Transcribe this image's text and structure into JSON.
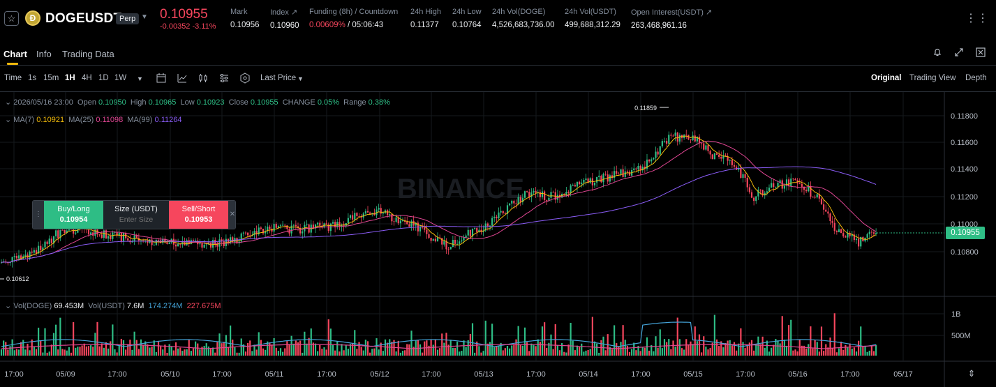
{
  "header": {
    "symbol": "DOGEUSDT",
    "contract_type": "Perp",
    "coin_glyph": "Ð",
    "last_price": "0.10955",
    "change": "-0.00352 -3.11%",
    "stats": [
      {
        "label": "Mark",
        "value": "0.10956"
      },
      {
        "label": "Index ↗",
        "value": "0.10960"
      },
      {
        "label": "Funding (8h) / Countdown",
        "value_rate": "0.00609%",
        "value_rest": " / 05:06:43"
      },
      {
        "label": "24h High",
        "value": "0.11377"
      },
      {
        "label": "24h Low",
        "value": "0.10764"
      },
      {
        "label": "24h Vol(DOGE)",
        "value": "4,526,683,736.00"
      },
      {
        "label": "24h Vol(USDT)",
        "value": "499,688,312.29"
      },
      {
        "label": "Open Interest(USDT) ↗",
        "value": "263,468,961.16"
      }
    ]
  },
  "tabs": [
    "Chart",
    "Info",
    "Trading Data"
  ],
  "toolbar": {
    "time_label": "Time",
    "intervals": [
      "1s",
      "15m",
      "1H",
      "4H",
      "1D",
      "1W"
    ],
    "active_interval": "1H",
    "price_source": "Last Price",
    "views": [
      "Original",
      "Trading View",
      "Depth"
    ],
    "active_view": "Original"
  },
  "legend": {
    "date": "2026/05/16 23:00",
    "open_label": "Open",
    "open": "0.10950",
    "high_label": "High",
    "high": "0.10965",
    "low_label": "Low",
    "low": "0.10923",
    "close_label": "Close",
    "close": "0.10955",
    "change_label": "CHANGE",
    "change": "0.05%",
    "range_label": "Range",
    "range": "0.38%",
    "ma7_label": "MA(7)",
    "ma7": "0.10921",
    "ma25_label": "MA(25)",
    "ma25": "0.11098",
    "ma99_label": "MA(99)",
    "ma99": "0.11264",
    "vol_label": "Vol(DOGE)",
    "vol_doge": "69.453M",
    "volusdt_label": "Vol(USDT)",
    "vol_usdt": "7.6M",
    "vol_ma1": "174.274M",
    "vol_ma2": "227.675M"
  },
  "trade_widget": {
    "buy_label": "Buy/Long",
    "buy_price": "0.10954",
    "size_label": "Size (USDT)",
    "size_placeholder": "Enter Size",
    "sell_label": "Sell/Short",
    "sell_price": "0.10953"
  },
  "chart_data": {
    "type": "candlestick",
    "price_axis_ticks": [
      "0.11800",
      "0.11600",
      "0.11400",
      "0.11200",
      "0.11000",
      "0.10800"
    ],
    "volume_axis_ticks": [
      "1B",
      "500M"
    ],
    "x_tick_labels": [
      "17:00",
      "05/09",
      "17:00",
      "05/10",
      "17:00",
      "05/11",
      "17:00",
      "05/12",
      "17:00",
      "05/13",
      "17:00",
      "05/14",
      "17:00",
      "05/15",
      "17:00",
      "05/16",
      "17:00",
      "05/17"
    ],
    "current_price": "0.10955",
    "max_marker": "0.11859",
    "min_marker": "0.10612",
    "watermark": "BINANCE"
  },
  "colors": {
    "up": "#2ebd85",
    "down": "#f6465d",
    "ma7": "#f0b90b",
    "ma25": "#e04693",
    "ma99": "#8a5cf6",
    "vol_ma1": "#44a3d8",
    "vol_ma2": "#e04693"
  }
}
